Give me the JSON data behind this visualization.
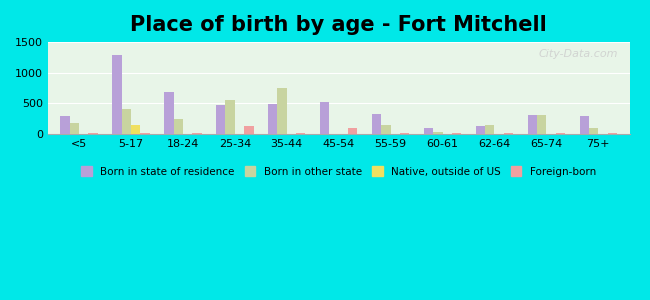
{
  "title": "Place of birth by age - Fort Mitchell",
  "categories": [
    "<5",
    "5-17",
    "18-24",
    "25-34",
    "35-44",
    "45-54",
    "55-59",
    "60-61",
    "62-64",
    "65-74",
    "75+"
  ],
  "series": {
    "Born in state of residence": [
      300,
      1290,
      690,
      480,
      490,
      530,
      330,
      100,
      140,
      310,
      300
    ],
    "Born in other state": [
      185,
      415,
      240,
      555,
      750,
      0,
      155,
      35,
      155,
      310,
      105
    ],
    "Native, outside of US": [
      0,
      145,
      0,
      0,
      0,
      0,
      0,
      0,
      0,
      0,
      0
    ],
    "Foreign-born": [
      20,
      20,
      20,
      130,
      20,
      100,
      20,
      20,
      20,
      20,
      20
    ]
  },
  "colors": {
    "Born in state of residence": "#b8a0d8",
    "Born in other state": "#c8d4a0",
    "Native, outside of US": "#f0e060",
    "Foreign-born": "#f0a0a0"
  },
  "ylim": [
    0,
    1500
  ],
  "yticks": [
    0,
    500,
    1000,
    1500
  ],
  "background_color": "#00e8e8",
  "plot_bg_start": "#e8f5e8",
  "plot_bg_end": "#f5f5ff",
  "title_fontsize": 15,
  "legend_labels": [
    "Born in state of residence",
    "Born in other state",
    "Native, outside of US",
    "Foreign-born"
  ]
}
